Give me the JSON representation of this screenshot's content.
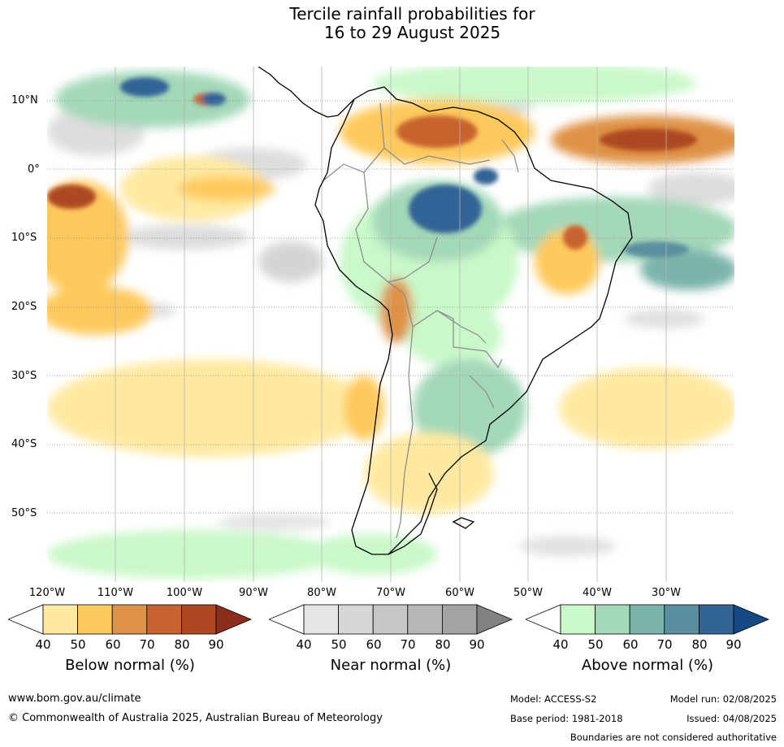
{
  "title": {
    "line1": "Tercile rainfall probabilities for",
    "line2": "16 to 29 August 2025"
  },
  "lat_labels": [
    "10°N",
    "0°",
    "10°S",
    "20°S",
    "30°S",
    "40°S",
    "50°S"
  ],
  "lon_labels": [
    "120°W",
    "110°W",
    "100°W",
    "90°W",
    "80°W",
    "70°W",
    "60°W",
    "50°W",
    "40°W",
    "30°W"
  ],
  "colorbars": [
    {
      "title": "Below normal (%)",
      "ticks": [
        "40",
        "50",
        "60",
        "70",
        "80",
        "90"
      ],
      "colors": [
        "#ffe9a1",
        "#fec95c",
        "#df9145",
        "#c8632f",
        "#ad4823",
        "#8c2e1d"
      ]
    },
    {
      "title": "Near normal (%)",
      "ticks": [
        "40",
        "50",
        "60",
        "70",
        "80",
        "90"
      ],
      "colors": [
        "#e5e5e5",
        "#d6d6d6",
        "#c6c6c6",
        "#b6b6b6",
        "#a3a3a3",
        "#828282"
      ]
    },
    {
      "title": "Above normal (%)",
      "ticks": [
        "40",
        "50",
        "60",
        "70",
        "80",
        "90"
      ],
      "colors": [
        "#c9f8c9",
        "#a3d8b8",
        "#7ab3ab",
        "#5a8f9f",
        "#336496",
        "#154a84"
      ]
    }
  ],
  "footer": {
    "website": "www.bom.gov.au/climate",
    "copyright": "© Commonwealth of Australia 2025, Australian Bureau of Meteorology",
    "model": "Model: ACCESS-S2",
    "base_period": "Base period: 1981-2018",
    "model_run": "Model run: 02/08/2025",
    "issued": "Issued: 04/08/2025",
    "disclaimer": "Boundaries are not considered authoritative"
  }
}
